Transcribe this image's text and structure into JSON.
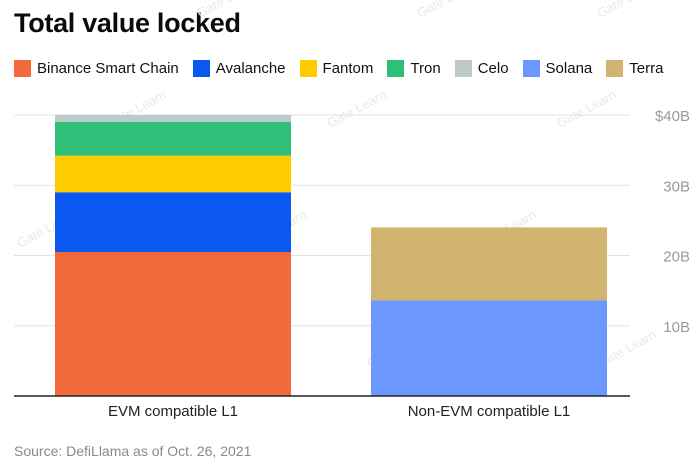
{
  "title": "Total value locked",
  "source": "Source: DefiLlama as of Oct. 26, 2021",
  "watermark_text": "Gate Learn",
  "chart_data": {
    "type": "bar",
    "stacked": true,
    "categories": [
      "EVM compatible L1",
      "Non-EVM compatible L1"
    ],
    "series": [
      {
        "name": "Binance Smart Chain",
        "color": "#f26a3c",
        "values": [
          20.5,
          0
        ]
      },
      {
        "name": "Avalanche",
        "color": "#0b57f2",
        "values": [
          8.5,
          0
        ]
      },
      {
        "name": "Fantom",
        "color": "#ffcc00",
        "values": [
          5.2,
          0
        ]
      },
      {
        "name": "Tron",
        "color": "#2fbf79",
        "values": [
          4.8,
          0
        ]
      },
      {
        "name": "Celo",
        "color": "#bccbc8",
        "values": [
          1.0,
          0
        ]
      },
      {
        "name": "Solana",
        "color": "#6c97ff",
        "values": [
          0,
          13.6
        ]
      },
      {
        "name": "Terra",
        "color": "#d1b46f",
        "values": [
          0,
          10.4
        ]
      }
    ],
    "ylim": [
      0,
      40
    ],
    "yticks": [
      10,
      20,
      30,
      40
    ],
    "ytick_labels": [
      "10B",
      "20B",
      "30B",
      "$40B"
    ],
    "grid": true,
    "legend_position": "top-left"
  }
}
